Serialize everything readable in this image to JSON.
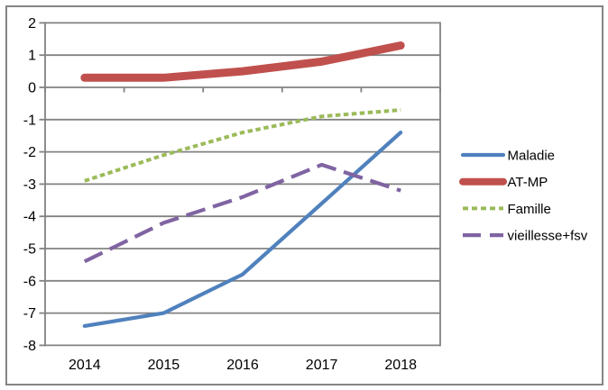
{
  "window": {
    "background_color": "#ffffff",
    "frame_border_color": "#858585"
  },
  "chart_data": {
    "type": "line",
    "title": "",
    "xlabel": "",
    "ylabel": "",
    "x": [
      "2014",
      "2015",
      "2016",
      "2017",
      "2018"
    ],
    "series": [
      {
        "name": "Maladie",
        "values": [
          -7.4,
          -7.0,
          -5.8,
          -3.6,
          -1.4
        ],
        "color": "#4F81BD",
        "line_style": "solid",
        "thickness": 4.2
      },
      {
        "name": "AT-MP",
        "values": [
          0.3,
          0.3,
          0.5,
          0.8,
          1.3
        ],
        "color": "#C0504D",
        "line_style": "solid",
        "thickness": 9
      },
      {
        "name": "Famille",
        "values": [
          -2.9,
          -2.1,
          -1.4,
          -0.9,
          -0.7
        ],
        "color": "#9BBB59",
        "line_style": "dash-short",
        "thickness": 4
      },
      {
        "name": "vieillesse+fsv",
        "values": [
          -5.4,
          -4.2,
          -3.4,
          -2.4,
          -3.2
        ],
        "color": "#8064A2",
        "line_style": "dash-long",
        "thickness": 4.2
      }
    ],
    "ylim": [
      -8,
      2
    ],
    "yticks": [
      2,
      1,
      0,
      -1,
      -2,
      -3,
      -4,
      -5,
      -6,
      -7,
      -8
    ],
    "grid": true,
    "gridline_color": "#828282",
    "axis_text_color": "#000000",
    "legend_position": "right",
    "legend_labels": [
      "Maladie",
      "AT-MP",
      "Famille",
      "vieillesse+fsv"
    ]
  }
}
